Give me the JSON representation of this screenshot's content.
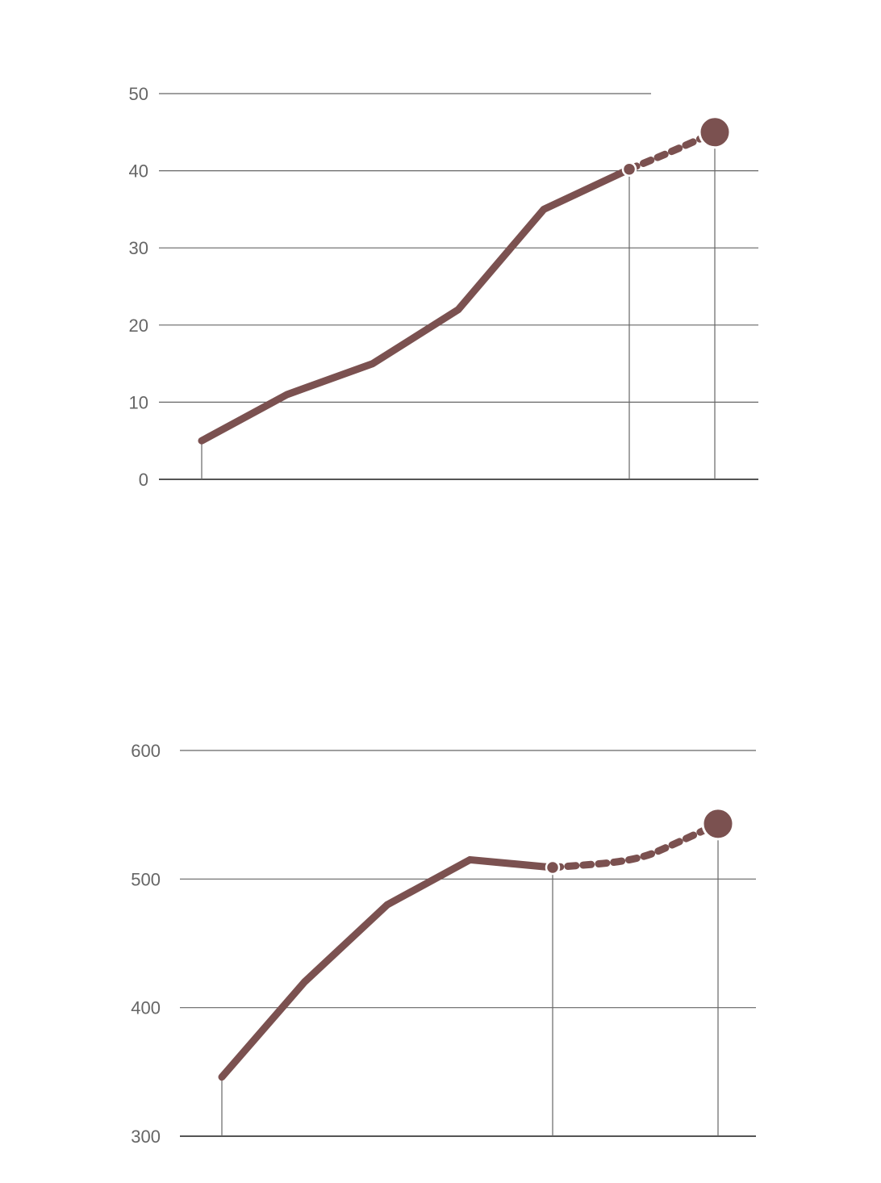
{
  "chart_data": [
    {
      "type": "line",
      "title": "",
      "xlabel": "",
      "ylabel": "",
      "ylim": [
        0,
        50
      ],
      "yticks": [
        "0",
        "10",
        "20",
        "30",
        "40",
        "50"
      ],
      "grid": "horizontal",
      "line_color": "#7b5150",
      "grid_color": "#555555",
      "tick_color": "#666666",
      "series": [
        {
          "style": "solid",
          "points": [
            {
              "x": 0,
              "y": 5
            },
            {
              "x": 1,
              "y": 11
            },
            {
              "x": 2,
              "y": 15
            },
            {
              "x": 3,
              "y": 22
            },
            {
              "x": 4,
              "y": 35
            },
            {
              "x": 5,
              "y": 40.2
            }
          ]
        },
        {
          "style": "dotted",
          "points": [
            {
              "x": 5,
              "y": 40.2
            },
            {
              "x": 5.5,
              "y": 42.5
            },
            {
              "x": 6,
              "y": 45
            }
          ]
        }
      ],
      "markers": [
        {
          "x": 5,
          "y": 40.2,
          "size": "small"
        },
        {
          "x": 6,
          "y": 45,
          "size": "large"
        }
      ],
      "droplines_x": [
        0,
        5,
        6
      ]
    },
    {
      "type": "line",
      "title": "",
      "xlabel": "",
      "ylabel": "",
      "ylim": [
        300,
        600
      ],
      "yticks": [
        "300",
        "400",
        "500",
        "600"
      ],
      "grid": "horizontal",
      "line_color": "#7b5150",
      "grid_color": "#555555",
      "tick_color": "#666666",
      "series": [
        {
          "style": "solid",
          "points": [
            {
              "x": 0,
              "y": 346
            },
            {
              "x": 1,
              "y": 420
            },
            {
              "x": 2,
              "y": 480
            },
            {
              "x": 3,
              "y": 515
            },
            {
              "x": 4,
              "y": 509
            }
          ]
        },
        {
          "style": "dotted",
          "points": [
            {
              "x": 4,
              "y": 509
            },
            {
              "x": 5,
              "y": 514
            },
            {
              "x": 5.5,
              "y": 528
            },
            {
              "x": 6,
              "y": 543
            }
          ]
        }
      ],
      "markers": [
        {
          "x": 4,
          "y": 509,
          "size": "small"
        },
        {
          "x": 6,
          "y": 543,
          "size": "large"
        }
      ],
      "droplines_x": [
        0,
        4,
        6
      ]
    }
  ]
}
